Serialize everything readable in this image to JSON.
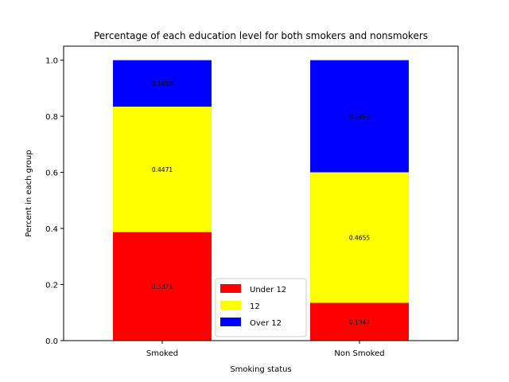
{
  "chart_data": {
    "type": "bar",
    "stacked": true,
    "title": "Percentage of each education level for both smokers and nonsmokers",
    "xlabel": "Smoking status",
    "ylabel": "Percent in each group",
    "categories": [
      "Smoked",
      "Non Smoked"
    ],
    "series": [
      {
        "name": "Under 12",
        "color": "#ff0000",
        "values": [
          0.3871,
          0.1347
        ],
        "labels": [
          "0.3871",
          "0.1347"
        ]
      },
      {
        "name": "12",
        "color": "#ffff00",
        "values": [
          0.4471,
          0.4655
        ],
        "labels": [
          "0.4471",
          "0.4655"
        ]
      },
      {
        "name": "Over 12",
        "color": "#0000ff",
        "values": [
          0.1658,
          0.3998
        ],
        "labels": [
          "0.1658",
          "0.3998"
        ]
      }
    ],
    "ylim": [
      0,
      1.05
    ],
    "yticks": [
      "0.0",
      "0.2",
      "0.4",
      "0.6",
      "0.8",
      "1.0"
    ],
    "ytick_values": [
      0,
      0.2,
      0.4,
      0.6,
      0.8,
      1.0
    ],
    "grid": false,
    "legend_position": "lower center"
  }
}
